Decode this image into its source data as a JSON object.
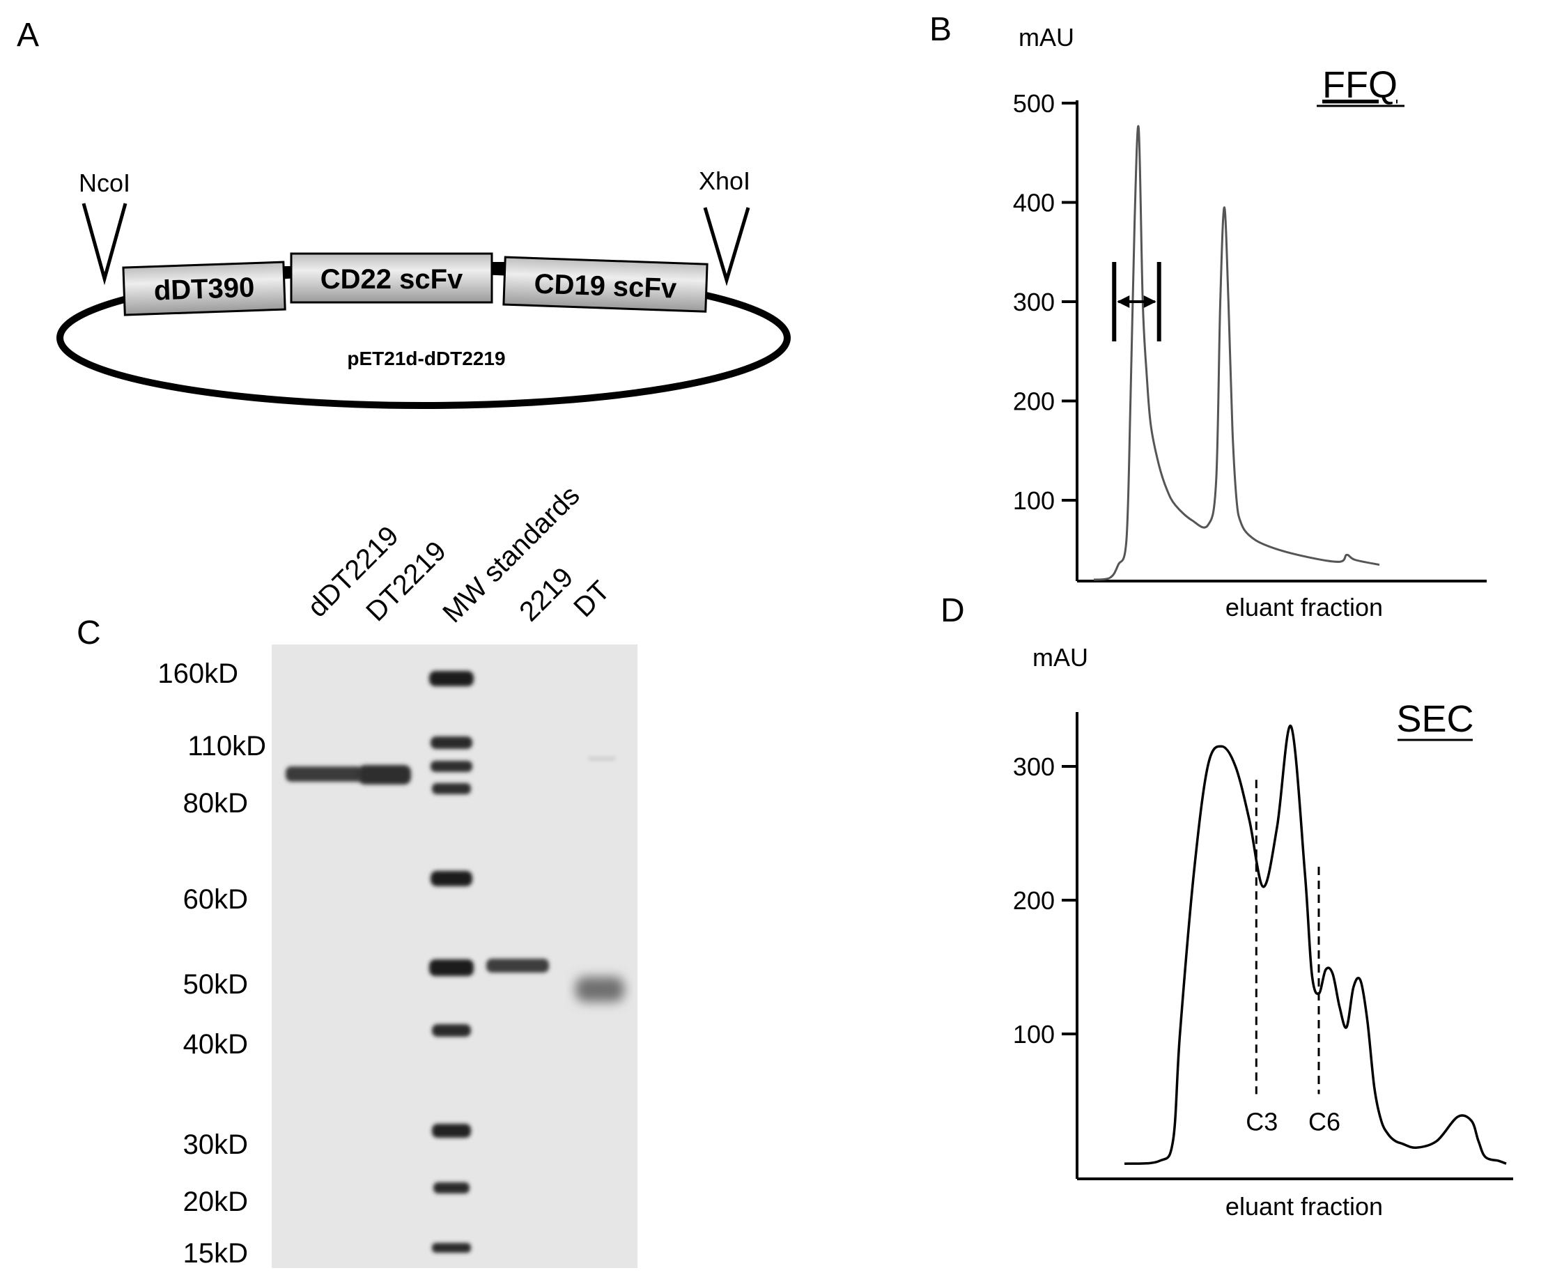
{
  "panel_a": {
    "letter": "A",
    "left_site": "NcoI",
    "right_site": "XhoI",
    "blocks": [
      "dDT390",
      "CD22 scFv",
      "CD19 scFv"
    ],
    "plasmid_label": "pET21d-dDT2219"
  },
  "panel_b": {
    "letter": "B",
    "title": "FFQ",
    "ylabel": "mAU",
    "xlabel": "eluant fraction",
    "y_ticks": [
      "500",
      "400",
      "300",
      "200",
      "100"
    ]
  },
  "panel_c": {
    "letter": "C",
    "lane_labels": [
      "dDT2219",
      "DT2219",
      "MW standards",
      "2219",
      "DT"
    ],
    "mw_labels": [
      "160kD",
      "110kD",
      "80kD",
      "60kD",
      "50kD",
      "40kD",
      "30kD",
      "20kD",
      "15kD"
    ]
  },
  "panel_d": {
    "letter": "D",
    "title": "SEC",
    "ylabel": "mAU",
    "xlabel": "eluant fraction",
    "y_ticks": [
      "300",
      "200",
      "100"
    ],
    "markers": [
      "C3",
      "C6"
    ]
  },
  "chart_data": [
    {
      "type": "line",
      "title": "FFQ",
      "ylabel": "mAU",
      "xlabel": "eluant fraction",
      "ylim": [
        0,
        500
      ],
      "series": [
        {
          "x": [
            0,
            4,
            6,
            8,
            9,
            10,
            11,
            12,
            13,
            14,
            16,
            18,
            20,
            24,
            28,
            30,
            31,
            32,
            33,
            34,
            35,
            36,
            38,
            42,
            50,
            60,
            62,
            64,
            70
          ],
          "values": [
            20,
            22,
            35,
            60,
            200,
            380,
            475,
            300,
            225,
            175,
            135,
            110,
            95,
            80,
            75,
            120,
            300,
            395,
            300,
            170,
            100,
            78,
            65,
            55,
            45,
            38,
            45,
            40,
            35
          ]
        }
      ],
      "bracket": {
        "x_start": 5,
        "x_end": 16
      }
    },
    {
      "type": "line",
      "title": "SEC",
      "ylabel": "mAU",
      "xlabel": "eluant fraction",
      "ylim": [
        0,
        340
      ],
      "series": [
        {
          "x": [
            0,
            5,
            7,
            8,
            10,
            12,
            14,
            16,
            18,
            20,
            22,
            24,
            26,
            27,
            28,
            29,
            30,
            31,
            32,
            33,
            34,
            35,
            36,
            37,
            38,
            39,
            40,
            42,
            45,
            48,
            50,
            51,
            52,
            54,
            55
          ],
          "values": [
            3,
            5,
            20,
            100,
            220,
            300,
            315,
            300,
            260,
            210,
            255,
            330,
            220,
            145,
            130,
            148,
            145,
            120,
            105,
            135,
            140,
            110,
            60,
            35,
            25,
            20,
            18,
            15,
            20,
            38,
            35,
            20,
            8,
            5,
            3
          ]
        }
      ],
      "markers": [
        {
          "label": "C3",
          "x": 19
        },
        {
          "label": "C6",
          "x": 28
        }
      ]
    }
  ]
}
